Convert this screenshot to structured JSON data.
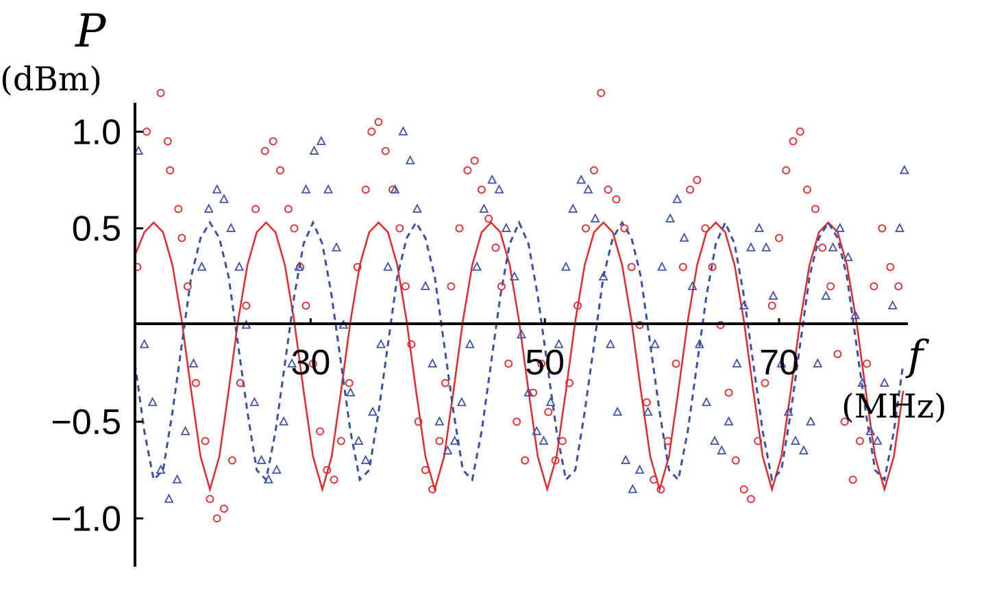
{
  "chart_data": {
    "type": "scatter",
    "title": "",
    "ylabel": "P",
    "yunit": "(dBm)",
    "xlabel": "f",
    "xunit": "(MHz)",
    "xlim": [
      15,
      81
    ],
    "ylim": [
      -1.25,
      1.15
    ],
    "xticks": [
      30,
      50,
      70
    ],
    "yticks": [
      1.0,
      0.5,
      -0.5,
      -1.0
    ],
    "xtick_labels": [
      "30",
      "50",
      "70"
    ],
    "ytick_labels": [
      "1.0",
      "0.5",
      "−0.5",
      "−1.0"
    ],
    "grid": false,
    "legend": "none",
    "colors": {
      "red": "#e8262b",
      "blue": "#3a4fa6"
    },
    "series": [
      {
        "kind": "points",
        "marker": "circle",
        "color": "#e8262b",
        "x": [
          15.2,
          16.0,
          17.2,
          17.8,
          18.0,
          18.7,
          19.0,
          19.5,
          20.2,
          21.0,
          21.4,
          22.0,
          22.6,
          23.3,
          24.0,
          24.5,
          25.3,
          26.1,
          26.8,
          27.4,
          28.1,
          28.6,
          29.1,
          29.6,
          30.2,
          30.8,
          31.4,
          32.0,
          32.6,
          33.3,
          34.0,
          34.7,
          35.2,
          35.8,
          36.4,
          37.0,
          37.6,
          38.1,
          38.6,
          39.2,
          39.8,
          40.4,
          41.0,
          41.5,
          42.0,
          42.7,
          43.4,
          44.0,
          44.6,
          45.2,
          45.8,
          46.3,
          46.9,
          47.6,
          48.3,
          49.0,
          49.7,
          50.3,
          50.9,
          51.5,
          52.1,
          52.8,
          53.5,
          54.2,
          54.8,
          55.4,
          56.1,
          56.8,
          57.4,
          58.1,
          58.7,
          59.3,
          59.9,
          60.5,
          61.2,
          61.8,
          62.4,
          63.0,
          63.7,
          64.3,
          65.0,
          65.7,
          66.3,
          67.0,
          67.6,
          68.2,
          68.8,
          69.4,
          70.0,
          70.6,
          71.2,
          71.8,
          72.4,
          73.1,
          73.7,
          74.4,
          75.0,
          75.6,
          76.3,
          76.9,
          77.5,
          78.1,
          78.8,
          79.5,
          80.2
        ],
        "y": [
          0.3,
          1.0,
          1.2,
          0.95,
          0.8,
          0.6,
          0.45,
          0.2,
          -0.3,
          -0.6,
          -0.9,
          -1.0,
          -0.95,
          -0.7,
          -0.3,
          0.1,
          0.6,
          0.9,
          0.95,
          0.8,
          0.6,
          0.5,
          0.3,
          0.1,
          -0.2,
          -0.55,
          -0.75,
          -0.8,
          -0.6,
          -0.3,
          0.3,
          0.7,
          1.0,
          1.05,
          0.9,
          0.7,
          0.5,
          0.2,
          -0.1,
          -0.5,
          -0.75,
          -0.85,
          -0.6,
          -0.3,
          0.2,
          0.5,
          0.8,
          0.85,
          0.7,
          0.55,
          0.4,
          0.2,
          -0.2,
          -0.5,
          -0.7,
          -0.35,
          -0.2,
          -0.45,
          -0.7,
          -0.6,
          -0.3,
          0.1,
          0.5,
          0.8,
          1.2,
          0.7,
          0.65,
          0.5,
          0.3,
          0.0,
          -0.4,
          -0.8,
          -0.85,
          -0.6,
          -0.2,
          0.3,
          0.7,
          0.75,
          0.5,
          0.3,
          0.0,
          -0.35,
          -0.7,
          -0.85,
          -0.9,
          -0.6,
          -0.3,
          0.1,
          0.45,
          0.8,
          0.95,
          1.0,
          0.7,
          0.6,
          0.4,
          0.2,
          -0.15,
          -0.5,
          -0.8,
          -0.6,
          -0.2,
          0.2,
          0.5,
          0.3,
          0.2
        ]
      },
      {
        "kind": "points",
        "marker": "triangle",
        "color": "#3a4fa6",
        "x": [
          15.3,
          15.8,
          16.5,
          17.2,
          17.9,
          18.6,
          19.3,
          20.0,
          20.7,
          21.3,
          22.0,
          22.6,
          23.2,
          23.9,
          24.5,
          25.2,
          25.8,
          26.4,
          27.1,
          27.7,
          28.4,
          29.0,
          29.6,
          30.3,
          30.9,
          31.5,
          32.2,
          32.8,
          33.4,
          34.1,
          34.7,
          35.3,
          36.0,
          36.6,
          37.2,
          37.9,
          38.5,
          39.1,
          39.8,
          40.4,
          41.0,
          41.7,
          42.3,
          42.9,
          43.6,
          44.2,
          44.8,
          45.5,
          46.1,
          46.7,
          47.4,
          48.0,
          48.6,
          49.3,
          49.9,
          50.5,
          51.2,
          51.8,
          52.4,
          53.1,
          53.7,
          54.3,
          55.0,
          55.6,
          56.2,
          56.9,
          57.5,
          58.1,
          58.8,
          59.4,
          60.0,
          60.7,
          61.3,
          61.9,
          62.6,
          63.2,
          63.8,
          64.5,
          65.1,
          65.7,
          66.4,
          67.0,
          67.6,
          68.3,
          68.9,
          69.5,
          70.2,
          70.8,
          71.4,
          72.1,
          72.7,
          73.3,
          74.0,
          74.6,
          75.2,
          75.9,
          76.5,
          77.1,
          77.8,
          78.4,
          79.0,
          79.7,
          80.3,
          80.7
        ],
        "y": [
          0.9,
          -0.1,
          -0.4,
          -0.75,
          -0.9,
          -0.8,
          -0.55,
          -0.2,
          0.3,
          0.6,
          0.7,
          0.65,
          0.5,
          0.3,
          0.0,
          -0.4,
          -0.7,
          -0.8,
          -0.75,
          -0.5,
          -0.2,
          0.3,
          0.7,
          0.9,
          0.95,
          0.7,
          0.4,
          0.0,
          -0.35,
          -0.6,
          -0.7,
          -0.45,
          -0.1,
          0.3,
          0.7,
          1.0,
          0.85,
          0.6,
          0.2,
          -0.2,
          -0.5,
          -0.65,
          -0.6,
          -0.4,
          -0.1,
          0.3,
          0.6,
          0.75,
          0.7,
          0.5,
          0.25,
          -0.05,
          -0.35,
          -0.55,
          -0.6,
          -0.4,
          -0.1,
          0.3,
          0.6,
          0.75,
          0.7,
          0.55,
          0.25,
          -0.1,
          -0.45,
          -0.7,
          -0.85,
          -0.75,
          -0.45,
          -0.1,
          0.3,
          0.55,
          0.65,
          0.45,
          0.2,
          -0.1,
          -0.4,
          -0.6,
          -0.65,
          -0.5,
          -0.2,
          0.1,
          0.4,
          0.5,
          0.4,
          0.15,
          -0.2,
          -0.45,
          -0.6,
          -0.65,
          -0.5,
          -0.2,
          0.15,
          0.4,
          0.5,
          0.35,
          0.05,
          -0.3,
          -0.55,
          -0.6,
          -0.3,
          0.1,
          0.5,
          0.8
        ]
      },
      {
        "kind": "line",
        "style": "solid",
        "color": "#e8262b",
        "x": [
          15.0,
          15.8,
          16.6,
          17.4,
          18.2,
          19.0,
          19.8,
          20.6,
          21.4,
          22.2,
          23.0,
          23.8,
          24.6,
          25.4,
          26.2,
          27.0,
          27.8,
          28.6,
          29.4,
          30.2,
          31.0,
          31.8,
          32.6,
          33.4,
          34.2,
          35.0,
          35.8,
          36.6,
          37.4,
          38.2,
          39.0,
          39.8,
          40.6,
          41.4,
          42.2,
          43.0,
          43.8,
          44.6,
          45.4,
          46.2,
          47.0,
          47.8,
          48.6,
          49.4,
          50.2,
          51.0,
          51.8,
          52.6,
          53.4,
          54.2,
          55.0,
          55.8,
          56.6,
          57.4,
          58.2,
          59.0,
          59.8,
          60.6,
          61.4,
          62.2,
          63.0,
          63.8,
          64.6,
          65.4,
          66.2,
          67.0,
          67.8,
          68.6,
          69.4,
          70.2,
          71.0,
          71.8,
          72.6,
          73.4,
          74.2,
          75.0,
          75.8,
          76.6,
          77.4,
          78.2,
          79.0,
          79.8,
          80.6
        ],
        "y": [
          0.36,
          0.48,
          0.53,
          0.48,
          0.31,
          0.02,
          -0.34,
          -0.68,
          -0.85,
          -0.68,
          -0.34,
          0.02,
          0.31,
          0.48,
          0.53,
          0.48,
          0.31,
          0.02,
          -0.34,
          -0.68,
          -0.85,
          -0.68,
          -0.34,
          0.02,
          0.31,
          0.48,
          0.53,
          0.48,
          0.31,
          0.02,
          -0.34,
          -0.68,
          -0.85,
          -0.68,
          -0.34,
          0.02,
          0.31,
          0.48,
          0.53,
          0.48,
          0.31,
          0.02,
          -0.34,
          -0.68,
          -0.85,
          -0.68,
          -0.34,
          0.02,
          0.31,
          0.48,
          0.53,
          0.48,
          0.31,
          0.02,
          -0.34,
          -0.68,
          -0.85,
          -0.68,
          -0.34,
          0.02,
          0.31,
          0.48,
          0.53,
          0.48,
          0.31,
          0.02,
          -0.34,
          -0.68,
          -0.85,
          -0.68,
          -0.34,
          0.02,
          0.31,
          0.48,
          0.53,
          0.48,
          0.31,
          0.02,
          -0.34,
          -0.68,
          -0.85,
          -0.68,
          -0.34
        ]
      },
      {
        "kind": "line",
        "style": "dashed",
        "color": "#3a4fa6",
        "x": [
          15.0,
          15.8,
          16.6,
          17.4,
          18.2,
          19.0,
          19.8,
          20.6,
          21.4,
          22.2,
          23.0,
          23.8,
          24.6,
          25.4,
          26.2,
          27.0,
          27.8,
          28.6,
          29.4,
          30.2,
          31.0,
          31.8,
          32.6,
          33.4,
          34.2,
          35.0,
          35.8,
          36.6,
          37.4,
          38.2,
          39.0,
          39.8,
          40.6,
          41.4,
          42.2,
          43.0,
          43.8,
          44.6,
          45.4,
          46.2,
          47.0,
          47.8,
          48.6,
          49.4,
          50.2,
          51.0,
          51.8,
          52.6,
          53.4,
          54.2,
          55.0,
          55.8,
          56.6,
          57.4,
          58.2,
          59.0,
          59.8,
          60.6,
          61.4,
          62.2,
          63.0,
          63.8,
          64.6,
          65.4,
          66.2,
          67.0,
          67.8,
          68.6,
          69.4,
          70.2,
          71.0,
          71.8,
          72.6,
          73.4,
          74.2,
          75.0,
          75.8,
          76.6,
          77.4,
          78.2,
          79.0,
          79.8,
          80.6
        ],
        "y": [
          -0.2,
          -0.55,
          -0.8,
          -0.75,
          -0.45,
          -0.1,
          0.25,
          0.45,
          0.53,
          0.45,
          0.25,
          -0.1,
          -0.45,
          -0.75,
          -0.8,
          -0.55,
          -0.2,
          0.15,
          0.42,
          0.53,
          0.42,
          0.15,
          -0.2,
          -0.55,
          -0.8,
          -0.75,
          -0.45,
          -0.1,
          0.25,
          0.45,
          0.53,
          0.45,
          0.25,
          -0.1,
          -0.45,
          -0.75,
          -0.8,
          -0.55,
          -0.2,
          0.15,
          0.42,
          0.53,
          0.42,
          0.15,
          -0.2,
          -0.55,
          -0.8,
          -0.75,
          -0.45,
          -0.1,
          0.25,
          0.45,
          0.53,
          0.45,
          0.25,
          -0.1,
          -0.45,
          -0.75,
          -0.8,
          -0.55,
          -0.2,
          0.15,
          0.42,
          0.53,
          0.42,
          0.15,
          -0.2,
          -0.55,
          -0.8,
          -0.75,
          -0.45,
          -0.1,
          0.25,
          0.45,
          0.53,
          0.45,
          0.25,
          -0.1,
          -0.45,
          -0.75,
          -0.8,
          -0.55,
          -0.2
        ]
      }
    ]
  }
}
